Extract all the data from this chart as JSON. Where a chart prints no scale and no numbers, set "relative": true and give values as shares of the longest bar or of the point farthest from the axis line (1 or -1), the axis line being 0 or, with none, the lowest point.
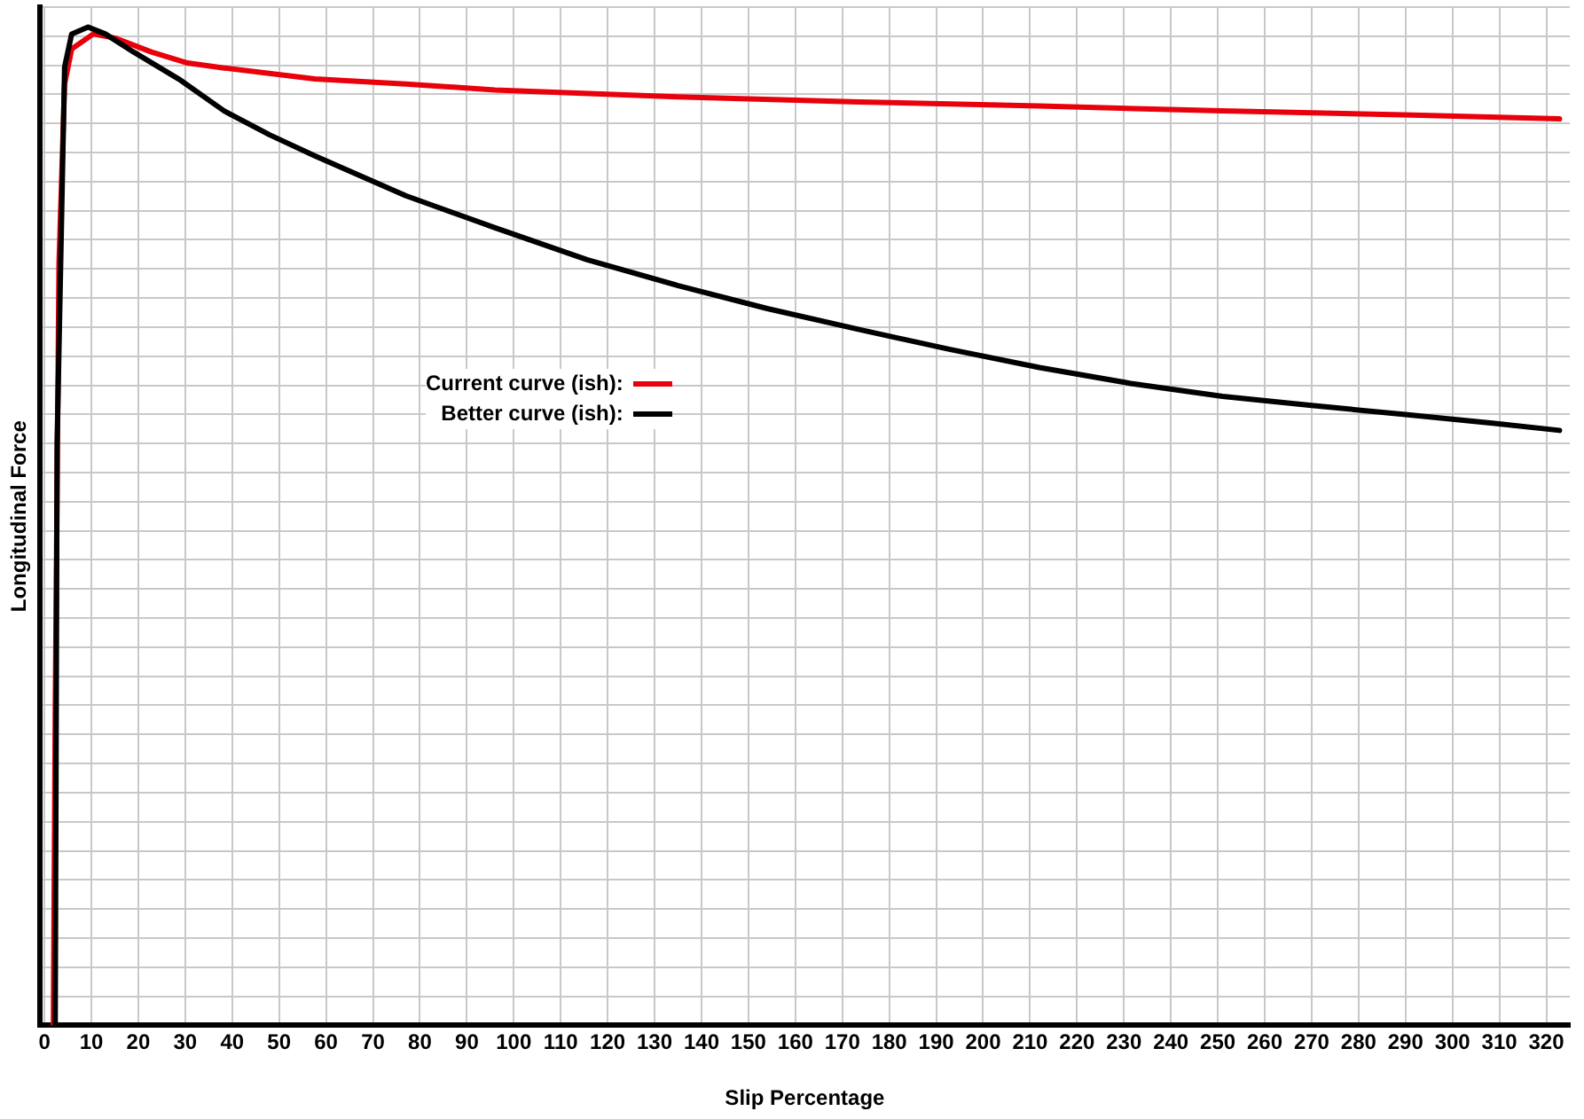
{
  "chart_data": {
    "type": "line",
    "xlabel": "Slip Percentage",
    "ylabel": "Longitudinal Force",
    "relative": true,
    "xlim": [
      -1,
      325
    ],
    "xticks": [
      0,
      10,
      20,
      30,
      40,
      50,
      60,
      70,
      80,
      90,
      100,
      110,
      120,
      130,
      140,
      150,
      160,
      170,
      180,
      190,
      200,
      210,
      220,
      230,
      240,
      250,
      260,
      270,
      280,
      290,
      300,
      310,
      320
    ],
    "grid": true,
    "legend": "top left",
    "marker": "none",
    "series": [
      {
        "name": "Current curve (ish):",
        "color": "#e8000b",
        "x": [
          1.9,
          2.3,
          3.1,
          4.3,
          5.8,
          10.4,
          15,
          22.8,
          30.5,
          38.3,
          57.6,
          77,
          96,
          135,
          173.6,
          212,
          251,
          289.5,
          322.8
        ],
        "values": [
          0,
          0.314,
          0.763,
          0.943,
          0.978,
          0.993,
          0.989,
          0.975,
          0.964,
          0.959,
          0.948,
          0.943,
          0.937,
          0.93,
          0.925,
          0.921,
          0.916,
          0.912,
          0.908
        ]
      },
      {
        "name": "Better curve (ish):",
        "color": "#000000",
        "x": [
          2.3,
          2.7,
          4.3,
          5.8,
          9.3,
          13,
          19,
          28.6,
          38.3,
          48,
          57.6,
          77,
          96,
          115.6,
          135,
          154,
          173.6,
          193,
          212,
          231.5,
          251,
          270,
          289.5,
          309,
          322.8
        ],
        "values": [
          0,
          0.583,
          0.96,
          0.993,
          1,
          0.993,
          0.975,
          0.948,
          0.916,
          0.892,
          0.871,
          0.831,
          0.799,
          0.767,
          0.741,
          0.718,
          0.697,
          0.677,
          0.659,
          0.643,
          0.63,
          0.621,
          0.612,
          0.603,
          0.596
        ]
      }
    ]
  }
}
